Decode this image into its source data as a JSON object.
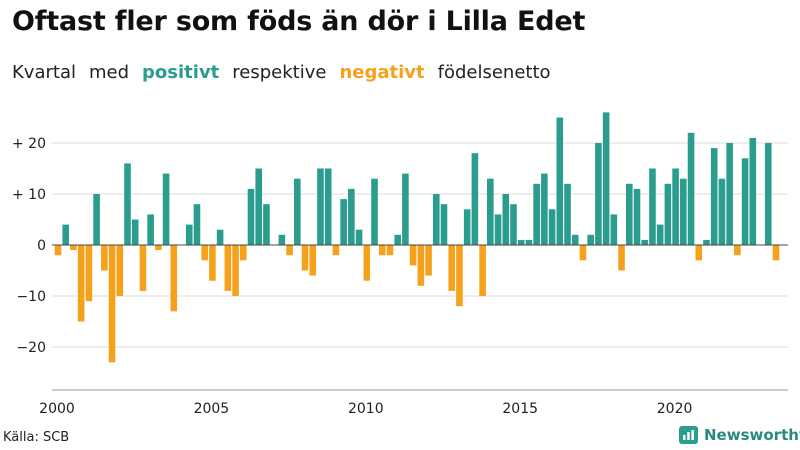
{
  "title": "Oftast fler som föds än dör i Lilla Edet",
  "subtitle": {
    "w1": "Kvartal",
    "w2": "med",
    "positive": "positivt",
    "w3": "respektive",
    "negative": "negativt",
    "w4": "födelsenetto"
  },
  "colors": {
    "positive": "#2a9d8f",
    "negative": "#f5a11c",
    "grid": "#dddddd",
    "axis": "#999999"
  },
  "source": "Källa: SCB",
  "brand": "Newsworthy",
  "chart_data": {
    "type": "bar",
    "title": "Oftast fler som föds än dör i Lilla Edet",
    "xlabel": "",
    "ylabel": "",
    "start_year": 2000,
    "periods_per_year": 4,
    "ylim": [
      -28,
      28
    ],
    "yticks": [
      {
        "value": 20,
        "label": "+ 20"
      },
      {
        "value": 10,
        "label": "+ 10"
      },
      {
        "value": 0,
        "label": "0"
      },
      {
        "value": -10,
        "label": "−10"
      },
      {
        "value": -20,
        "label": "−20"
      }
    ],
    "xticks": [
      {
        "index": 0,
        "label": "2000"
      },
      {
        "index": 20,
        "label": "2005"
      },
      {
        "index": 40,
        "label": "2010"
      },
      {
        "index": 60,
        "label": "2015"
      },
      {
        "index": 80,
        "label": "2020"
      }
    ],
    "values": [
      -2,
      4,
      -1,
      -15,
      -11,
      10,
      -5,
      -23,
      -10,
      16,
      5,
      -9,
      6,
      -1,
      14,
      -13,
      0,
      4,
      8,
      -3,
      -7,
      3,
      -9,
      -10,
      -3,
      11,
      15,
      8,
      0,
      2,
      -2,
      13,
      -5,
      -6,
      15,
      15,
      -2,
      9,
      11,
      3,
      -7,
      13,
      -2,
      -2,
      2,
      14,
      -4,
      -8,
      -6,
      10,
      8,
      -9,
      -12,
      7,
      18,
      -10,
      13,
      6,
      10,
      8,
      1,
      1,
      12,
      14,
      7,
      25,
      12,
      2,
      -3,
      2,
      20,
      26,
      6,
      -5,
      12,
      11,
      1,
      15,
      4,
      12,
      15,
      13,
      22,
      -3,
      1,
      19,
      13,
      20,
      -2,
      17,
      21,
      0,
      20,
      -3
    ]
  }
}
